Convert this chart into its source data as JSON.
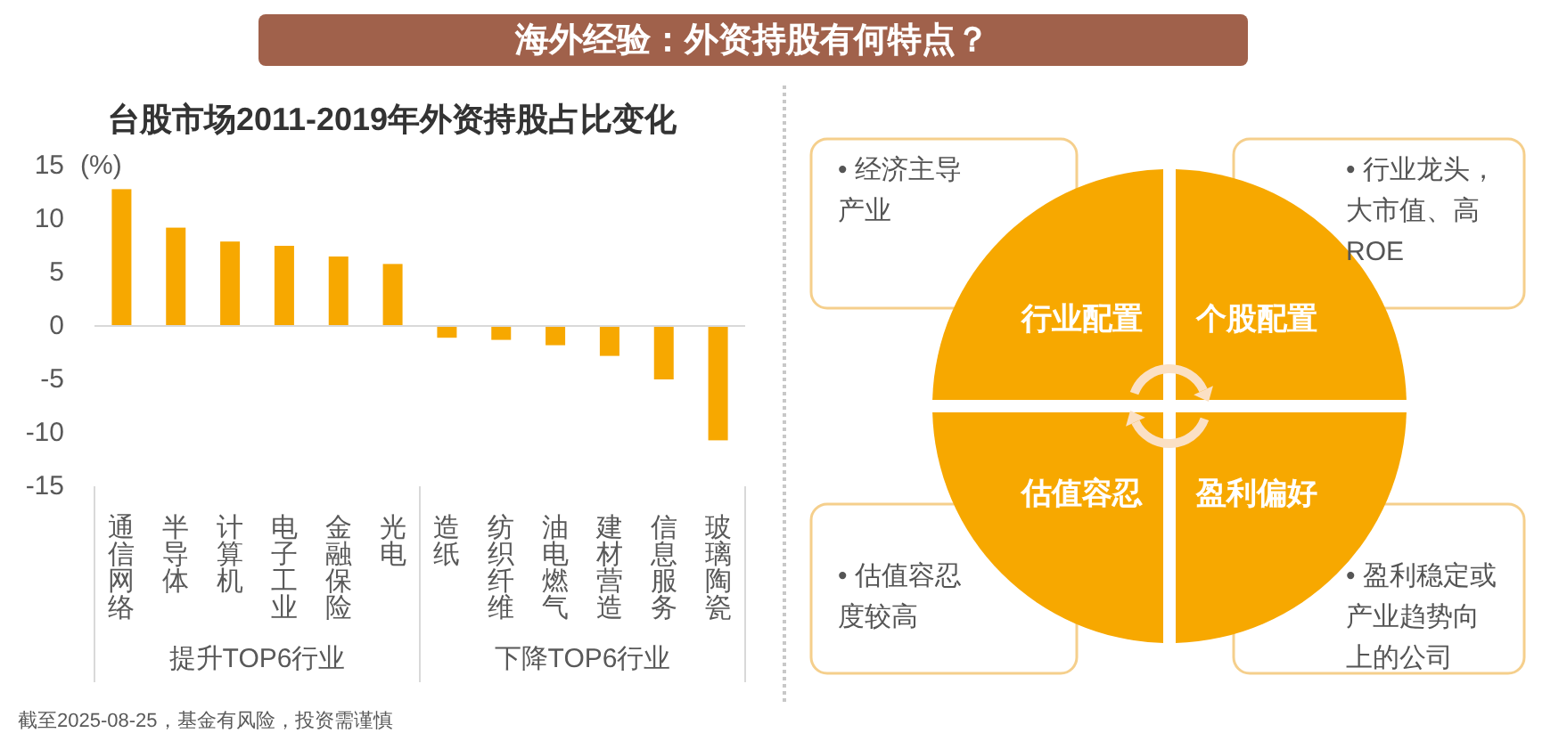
{
  "chart_data": [
    {
      "type": "bar",
      "title": "海外经验：外资持股有何特点？",
      "subtitle": "台股市场2011-2019年外资持股占比变化",
      "ylabel": "(%)",
      "categories": [
        "通信网络",
        "半导体",
        "计算机",
        "电子工业",
        "金融保险",
        "光电",
        "造纸",
        "纺织纤维",
        "油电燃气",
        "建材营造",
        "信息服务",
        "玻璃陶瓷"
      ],
      "values": [
        12.8,
        9.2,
        7.9,
        7.5,
        6.5,
        5.8,
        -1.1,
        -1.3,
        -1.8,
        -2.8,
        -5,
        -10.7
      ],
      "color": "#f7a800",
      "ylim": [
        -15,
        15
      ],
      "yticks": [
        -15,
        -10,
        -5,
        0,
        5,
        10,
        15
      ],
      "annotations": [
        "提升TOP6行业",
        "下降TOP6行业",
        "截至2025-08-25，基金有风险，投资需谨慎"
      ]
    },
    {
      "type": "other",
      "categories": [
        "行业配置",
        "个股配置",
        "估值容忍",
        "盈利偏好"
      ],
      "color": "#f7a800",
      "annotations": [
        "• 经济主导产业",
        "• 行业龙头，大市值、高ROE",
        "• 估值容忍度较高",
        "• 盈利稳定或产业趋势向上的公司"
      ]
    }
  ]
}
